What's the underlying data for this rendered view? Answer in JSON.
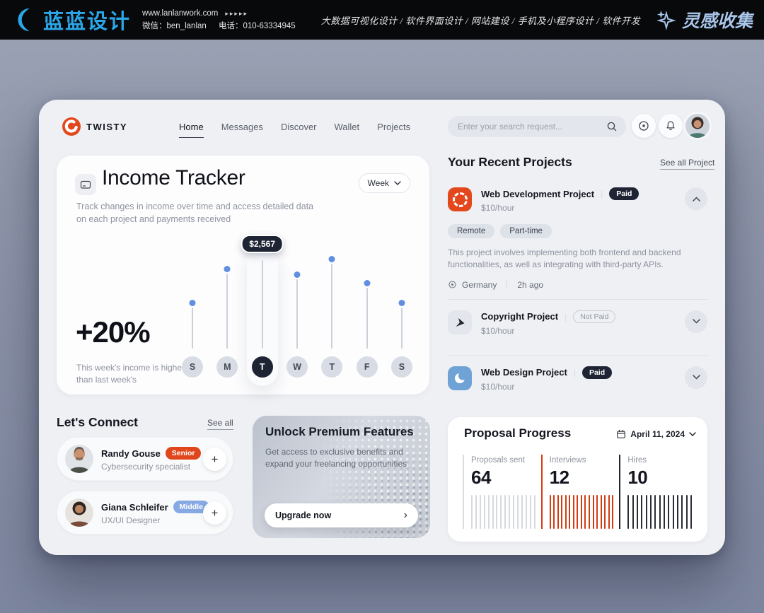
{
  "colors": {
    "brand_red": "#e3481d",
    "navy": "#1e2433",
    "chart_dot_blue": "#608fe0",
    "badge_blue": "#86a9e3",
    "tick_red": "#d23c13",
    "banner_blue": "#2ba7e9",
    "collect_blue": "#a9c6ea",
    "panel_bg": "#eef0f4",
    "page_bg": "#8d94a9"
  },
  "banner": {
    "logo_text": "蓝蓝设计",
    "site": "www.lanlanwork.com",
    "arrows": "▸▸▸▸▸",
    "wechat": "微信：ben_lanlan",
    "phone": "电话：010-63334945",
    "services": "大数据可视化设计 / 软件界面设计 / 网站建设 / 手机及小程序设计 / 软件开发",
    "collect_label": "灵感收集"
  },
  "navbar": {
    "brand": "TWISTY",
    "items": [
      {
        "label": "Home",
        "active": true
      },
      {
        "label": "Messages",
        "active": false
      },
      {
        "label": "Discover",
        "active": false
      },
      {
        "label": "Wallet",
        "active": false
      },
      {
        "label": "Projects",
        "active": false
      }
    ],
    "search_placeholder": "Enter your search request..."
  },
  "income_tracker": {
    "title": "Income Tracker",
    "subtitle": "Track changes in income over time and access detailed data on each project and payments received",
    "period_label": "Week",
    "change": "+20%",
    "change_note": "This week's income is higher than last week's"
  },
  "chart_data": [
    {
      "id": "income-week-chart",
      "type": "lollipop",
      "title": "Income Tracker",
      "categories": [
        "S",
        "M",
        "T",
        "W",
        "T",
        "F",
        "S"
      ],
      "values_relative": [
        46,
        85,
        100,
        78,
        96,
        69,
        46
      ],
      "highlight_index": 2,
      "highlight_value_label": "$2,567",
      "change": "+20%",
      "period": "Week",
      "legend": "none"
    },
    {
      "id": "proposal-progress-chart",
      "type": "tick-bar",
      "title": "Proposal Progress",
      "date": "April 11, 2024",
      "series": [
        {
          "name": "Proposals sent",
          "value": "64",
          "ticks": 16,
          "color": "#d6d9de",
          "border": "#d9dce1"
        },
        {
          "name": "Interviews",
          "value": "12",
          "ticks": 17,
          "color": "#d23c13",
          "border": "#d23c13"
        },
        {
          "name": "Hires",
          "value": "10",
          "ticks": 15,
          "color": "#2a2d36",
          "border": "#22252e"
        }
      ]
    }
  ],
  "recent_projects": {
    "title": "Your Recent Projects",
    "see_all_label": "See all Project",
    "projects": [
      {
        "name": "Web Development Project",
        "status": "Paid",
        "paid": true,
        "rate": "$10/hour",
        "icon": "webdev",
        "expanded": true,
        "tags": [
          "Remote",
          "Part-time"
        ],
        "description": "This project involves implementing both frontend and backend functionalities, as well as integrating with third-party APIs.",
        "location": "Germany",
        "time_ago": "2h ago"
      },
      {
        "name": "Copyright Project",
        "status": "Not Paid",
        "paid": false,
        "rate": "$10/hour",
        "icon": "copyright",
        "expanded": false
      },
      {
        "name": "Web Design Project",
        "status": "Paid",
        "paid": true,
        "rate": "$10/hour",
        "icon": "webdesign",
        "expanded": false
      }
    ]
  },
  "lets_connect": {
    "title": "Let's Connect",
    "see_all_label": "See all",
    "people": [
      {
        "name": "Randy Gouse",
        "level": "Senior",
        "level_color": "#e0461c",
        "role": "Cybersecurity specialist"
      },
      {
        "name": "Giana Schleifer",
        "level": "Middle",
        "level_color": "#86a9e3",
        "role": "UX/UI Designer"
      }
    ]
  },
  "premium": {
    "title": "Unlock Premium Features",
    "subtitle": "Get access to exclusive benefits and expand your freelancing opportunities",
    "button_label": "Upgrade now",
    "button_arrow": "›"
  }
}
